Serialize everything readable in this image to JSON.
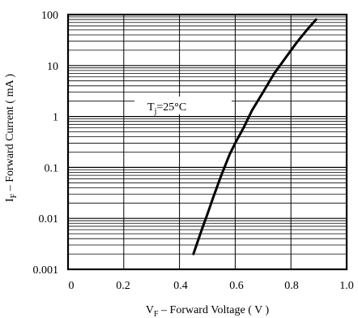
{
  "chart_data": {
    "type": "line",
    "title": "",
    "xlabel": {
      "main": "V",
      "sub": "F",
      "rest": " – Forward Voltage ( V )"
    },
    "ylabel": {
      "main": "I",
      "sub": "F",
      "rest": " – Forward Current ( mA )"
    },
    "xlim": [
      0,
      1.0
    ],
    "ylim": [
      0.001,
      100
    ],
    "yscale": "log",
    "xticks": [
      "0",
      "0.2",
      "0.4",
      "0.6",
      "0.8",
      "1.0"
    ],
    "yticks": [
      "0.001",
      "0.01",
      "0.1",
      "1",
      "10",
      "100"
    ],
    "grid": true,
    "annotation": {
      "main": "T",
      "sub": "j",
      "rest": "=25°C"
    },
    "series": [
      {
        "x": [
          0.45,
          0.48,
          0.5,
          0.52,
          0.55,
          0.58,
          0.6,
          0.63,
          0.66,
          0.7,
          0.74,
          0.78,
          0.82,
          0.86,
          0.89
        ],
        "y": [
          0.002,
          0.006,
          0.012,
          0.025,
          0.07,
          0.18,
          0.3,
          0.6,
          1.3,
          3,
          7,
          14,
          28,
          52,
          80
        ]
      }
    ]
  }
}
